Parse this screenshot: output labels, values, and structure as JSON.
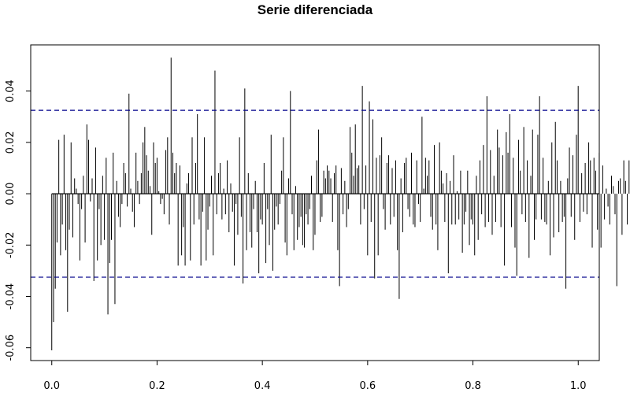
{
  "chart_data": {
    "type": "bar",
    "title": "Serie diferenciada",
    "xlabel": "",
    "ylabel": "",
    "xlim": [
      -0.04,
      1.04
    ],
    "ylim": [
      -0.065,
      0.058
    ],
    "x_ticks": [
      0.0,
      0.2,
      0.4,
      0.6,
      0.8,
      1.0
    ],
    "x_tick_labels": [
      "0.0",
      "0.2",
      "0.4",
      "0.6",
      "0.8",
      "1.0"
    ],
    "y_ticks": [
      -0.06,
      -0.04,
      -0.02,
      0.0,
      0.02,
      0.04
    ],
    "y_tick_labels": [
      "-0.06",
      "-0.04",
      "-0.02",
      "0.00",
      "0.02",
      "0.04"
    ],
    "confidence_bounds": [
      0.0325,
      -0.0325
    ],
    "bound_color": "#00008b",
    "bar_color": "#000000",
    "grid": false,
    "lag_start": 0.0,
    "lag_step": 0.003333,
    "values": [
      -0.061,
      -0.05,
      -0.037,
      -0.019,
      0.021,
      -0.024,
      -0.012,
      0.023,
      -0.022,
      -0.046,
      -0.014,
      0.02,
      -0.017,
      0.006,
      0.002,
      -0.004,
      -0.026,
      -0.006,
      0.007,
      -0.019,
      0.027,
      0.021,
      -0.003,
      0.006,
      -0.034,
      0.018,
      -0.026,
      -0.006,
      -0.02,
      0.007,
      -0.018,
      0.014,
      -0.047,
      -0.027,
      -0.018,
      0.016,
      -0.043,
      0.005,
      -0.009,
      -0.013,
      -0.004,
      0.012,
      0.008,
      -0.005,
      0.039,
      0.002,
      -0.007,
      -0.013,
      0.016,
      0.005,
      -0.004,
      0.008,
      0.02,
      0.026,
      0.015,
      0.009,
      0.003,
      -0.016,
      0.02,
      0.012,
      0.014,
      0.001,
      -0.004,
      -0.002,
      -0.008,
      0.017,
      0.022,
      -0.012,
      0.053,
      0.016,
      0.008,
      0.012,
      -0.028,
      0.011,
      -0.024,
      -0.013,
      -0.028,
      0.004,
      0.008,
      -0.026,
      0.022,
      -0.012,
      0.012,
      0.031,
      -0.01,
      -0.028,
      -0.007,
      0.022,
      -0.026,
      -0.014,
      -0.005,
      0.007,
      -0.024,
      0.048,
      -0.008,
      0.008,
      0.012,
      -0.01,
      0.002,
      -0.008,
      0.013,
      -0.015,
      0.004,
      -0.007,
      -0.028,
      -0.004,
      -0.016,
      0.022,
      -0.009,
      -0.035,
      0.041,
      -0.022,
      0.008,
      -0.015,
      -0.021,
      -0.006,
      0.005,
      -0.015,
      -0.031,
      -0.01,
      -0.012,
      0.012,
      -0.027,
      -0.006,
      -0.02,
      0.023,
      -0.03,
      -0.014,
      -0.005,
      -0.012,
      -0.004,
      0.009,
      0.022,
      -0.019,
      -0.024,
      0.006,
      0.04,
      -0.008,
      -0.022,
      0.003,
      -0.018,
      -0.013,
      -0.009,
      -0.02,
      -0.021,
      -0.008,
      -0.012,
      -0.006,
      0.007,
      -0.022,
      -0.016,
      0.013,
      0.025,
      -0.011,
      -0.009,
      0.009,
      0.006,
      0.011,
      0.009,
      0.006,
      -0.011,
      0.008,
      0.011,
      -0.022,
      -0.036,
      0.01,
      -0.008,
      0.005,
      -0.013,
      -0.006,
      0.026,
      0.016,
      0.007,
      0.027,
      0.01,
      0.011,
      -0.012,
      0.042,
      -0.006,
      0.011,
      -0.024,
      0.036,
      -0.011,
      0.029,
      -0.033,
      0.014,
      -0.024,
      0.015,
      0.022,
      -0.006,
      -0.014,
      0.012,
      0.015,
      -0.012,
      0.01,
      -0.009,
      0.013,
      -0.022,
      -0.041,
      0.006,
      -0.015,
      0.012,
      0.014,
      -0.006,
      -0.009,
      0.016,
      -0.012,
      -0.013,
      0.013,
      -0.004,
      -0.011,
      0.03,
      0.002,
      0.014,
      0.007,
      0.013,
      -0.009,
      -0.014,
      0.019,
      -0.012,
      -0.022,
      0.02,
      0.009,
      0.004,
      -0.011,
      0.008,
      -0.031,
      0.005,
      -0.012,
      0.015,
      -0.012,
      0.001,
      -0.01,
      0.009,
      -0.023,
      -0.012,
      -0.007,
      0.009,
      -0.02,
      -0.01,
      -0.012,
      -0.024,
      0.007,
      -0.018,
      0.013,
      -0.008,
      0.019,
      -0.013,
      0.038,
      -0.011,
      0.017,
      -0.016,
      0.007,
      -0.011,
      0.025,
      0.018,
      -0.013,
      0.015,
      -0.028,
      0.024,
      0.016,
      0.031,
      -0.013,
      0.014,
      -0.021,
      -0.032,
      0.021,
      0.009,
      -0.008,
      0.026,
      -0.011,
      0.013,
      -0.025,
      0.007,
      0.025,
      -0.018,
      -0.01,
      0.023,
      0.038,
      -0.01,
      0.014,
      -0.011,
      -0.012,
      0.005,
      -0.024,
      0.02,
      -0.017,
      0.028,
      0.013,
      -0.015,
      0.005,
      -0.011,
      -0.009,
      -0.037,
      0.006,
      0.018,
      -0.009,
      0.015,
      -0.018,
      0.023,
      0.042,
      -0.011,
      0.008,
      -0.007,
      0.012,
      -0.008,
      0.02,
      0.013,
      -0.021,
      0.014,
      0.009,
      -0.014,
      0.016,
      -0.021,
      0.011,
      -0.01,
      0.002,
      -0.005,
      -0.012,
      0.007,
      0.003,
      -0.008,
      -0.036,
      0.005,
      0.006,
      -0.016,
      0.013,
      0.005,
      -0.012,
      0.013,
      0.006,
      0.025,
      -0.006,
      0.022,
      -0.004,
      0.012,
      -0.01,
      -0.018,
      0.014,
      -0.011,
      0.019,
      -0.014,
      0.015,
      0.005,
      -0.008,
      0.033,
      0.003,
      -0.006,
      0.01
    ]
  }
}
